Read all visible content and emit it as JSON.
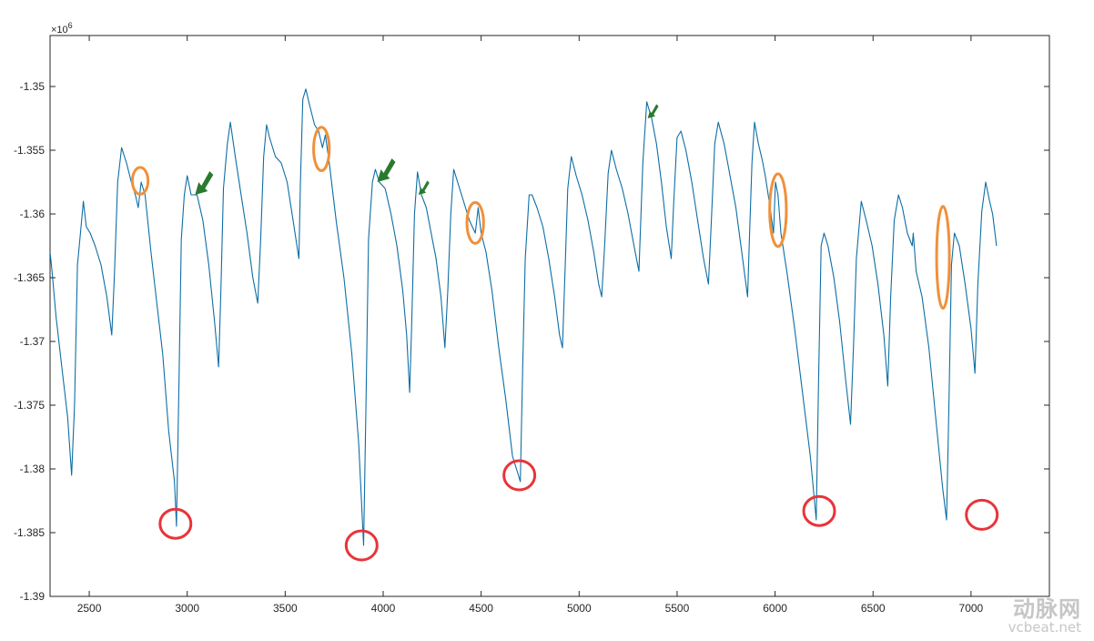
{
  "chart_data": {
    "type": "line",
    "title": "",
    "xlabel": "",
    "ylabel": "",
    "y_exponent_label": "×10",
    "y_exponent_power": "6",
    "xlim": [
      2300,
      7400
    ],
    "ylim": [
      -1.39,
      -1.346
    ],
    "x_ticks": [
      2500,
      3000,
      3500,
      4000,
      4500,
      5000,
      5500,
      6000,
      6500,
      7000
    ],
    "x_tick_labels": [
      "2500",
      "3000",
      "3500",
      "4000",
      "4500",
      "5000",
      "5500",
      "6000",
      "6500",
      "7000"
    ],
    "y_ticks": [
      -1.35,
      -1.355,
      -1.36,
      -1.365,
      -1.37,
      -1.375,
      -1.38,
      -1.385,
      -1.39
    ],
    "y_tick_labels": [
      "-1.35",
      "-1.355",
      "-1.36",
      "-1.365",
      "-1.37",
      "-1.375",
      "-1.38",
      "-1.385",
      "-1.39"
    ],
    "grid": false,
    "colors": {
      "line": "#0e6ea5",
      "red_marker": "#e8343a",
      "orange_marker": "#f0903a",
      "green_marker": "#2a7a2e",
      "axis": "#262626"
    },
    "series": [
      {
        "values": [
          [
            2300,
            -1.363
          ],
          [
            2310,
            -1.3645
          ],
          [
            2330,
            -1.368
          ],
          [
            2360,
            -1.372
          ],
          [
            2390,
            -1.376
          ],
          [
            2410,
            -1.3805
          ],
          [
            2425,
            -1.375
          ],
          [
            2440,
            -1.364
          ],
          [
            2455,
            -1.3615
          ],
          [
            2470,
            -1.359
          ],
          [
            2485,
            -1.361
          ],
          [
            2505,
            -1.3615
          ],
          [
            2530,
            -1.3625
          ],
          [
            2560,
            -1.364
          ],
          [
            2590,
            -1.3665
          ],
          [
            2615,
            -1.3695
          ],
          [
            2628,
            -1.365
          ],
          [
            2645,
            -1.3575
          ],
          [
            2665,
            -1.3548
          ],
          [
            2690,
            -1.356
          ],
          [
            2715,
            -1.3575
          ],
          [
            2735,
            -1.3585
          ],
          [
            2750,
            -1.3595
          ],
          [
            2765,
            -1.3575
          ],
          [
            2785,
            -1.3585
          ],
          [
            2815,
            -1.363
          ],
          [
            2845,
            -1.367
          ],
          [
            2875,
            -1.371
          ],
          [
            2905,
            -1.377
          ],
          [
            2935,
            -1.381
          ],
          [
            2945,
            -1.3845
          ],
          [
            2958,
            -1.373
          ],
          [
            2970,
            -1.362
          ],
          [
            2985,
            -1.3585
          ],
          [
            3000,
            -1.357
          ],
          [
            3020,
            -1.3585
          ],
          [
            3050,
            -1.3585
          ],
          [
            3080,
            -1.3605
          ],
          [
            3110,
            -1.364
          ],
          [
            3140,
            -1.3685
          ],
          [
            3160,
            -1.372
          ],
          [
            3172,
            -1.366
          ],
          [
            3185,
            -1.358
          ],
          [
            3205,
            -1.3545
          ],
          [
            3220,
            -1.3528
          ],
          [
            3245,
            -1.3555
          ],
          [
            3275,
            -1.3585
          ],
          [
            3305,
            -1.3615
          ],
          [
            3335,
            -1.365
          ],
          [
            3360,
            -1.367
          ],
          [
            3375,
            -1.362
          ],
          [
            3390,
            -1.3555
          ],
          [
            3405,
            -1.353
          ],
          [
            3420,
            -1.354
          ],
          [
            3450,
            -1.3555
          ],
          [
            3480,
            -1.356
          ],
          [
            3510,
            -1.3575
          ],
          [
            3540,
            -1.3605
          ],
          [
            3570,
            -1.3635
          ],
          [
            3578,
            -1.3575
          ],
          [
            3590,
            -1.351
          ],
          [
            3605,
            -1.3502
          ],
          [
            3625,
            -1.3515
          ],
          [
            3650,
            -1.353
          ],
          [
            3670,
            -1.3535
          ],
          [
            3690,
            -1.3548
          ],
          [
            3705,
            -1.3538
          ],
          [
            3725,
            -1.356
          ],
          [
            3760,
            -1.3605
          ],
          [
            3800,
            -1.365
          ],
          [
            3840,
            -1.371
          ],
          [
            3875,
            -1.378
          ],
          [
            3900,
            -1.386
          ],
          [
            3912,
            -1.375
          ],
          [
            3925,
            -1.362
          ],
          [
            3945,
            -1.3575
          ],
          [
            3960,
            -1.3565
          ],
          [
            3980,
            -1.3575
          ],
          [
            4010,
            -1.358
          ],
          [
            4040,
            -1.36
          ],
          [
            4070,
            -1.3625
          ],
          [
            4100,
            -1.366
          ],
          [
            4120,
            -1.3695
          ],
          [
            4135,
            -1.374
          ],
          [
            4145,
            -1.369
          ],
          [
            4160,
            -1.36
          ],
          [
            4175,
            -1.3567
          ],
          [
            4195,
            -1.3585
          ],
          [
            4220,
            -1.3595
          ],
          [
            4245,
            -1.3615
          ],
          [
            4270,
            -1.3635
          ],
          [
            4295,
            -1.3665
          ],
          [
            4315,
            -1.3705
          ],
          [
            4330,
            -1.366
          ],
          [
            4345,
            -1.36
          ],
          [
            4360,
            -1.3565
          ],
          [
            4380,
            -1.3575
          ],
          [
            4410,
            -1.359
          ],
          [
            4440,
            -1.3605
          ],
          [
            4470,
            -1.3615
          ],
          [
            4485,
            -1.3595
          ],
          [
            4500,
            -1.3615
          ],
          [
            4525,
            -1.363
          ],
          [
            4555,
            -1.366
          ],
          [
            4590,
            -1.3705
          ],
          [
            4625,
            -1.3745
          ],
          [
            4660,
            -1.379
          ],
          [
            4690,
            -1.3805
          ],
          [
            4700,
            -1.381
          ],
          [
            4712,
            -1.372
          ],
          [
            4725,
            -1.3635
          ],
          [
            4745,
            -1.3585
          ],
          [
            4760,
            -1.3585
          ],
          [
            4785,
            -1.3595
          ],
          [
            4815,
            -1.361
          ],
          [
            4845,
            -1.3635
          ],
          [
            4875,
            -1.3665
          ],
          [
            4900,
            -1.3695
          ],
          [
            4915,
            -1.3705
          ],
          [
            4928,
            -1.3645
          ],
          [
            4942,
            -1.358
          ],
          [
            4960,
            -1.3555
          ],
          [
            4985,
            -1.357
          ],
          [
            5015,
            -1.3585
          ],
          [
            5045,
            -1.3605
          ],
          [
            5075,
            -1.363
          ],
          [
            5100,
            -1.3655
          ],
          [
            5115,
            -1.3665
          ],
          [
            5130,
            -1.3625
          ],
          [
            5148,
            -1.3568
          ],
          [
            5165,
            -1.355
          ],
          [
            5190,
            -1.3565
          ],
          [
            5220,
            -1.358
          ],
          [
            5250,
            -1.36
          ],
          [
            5280,
            -1.3625
          ],
          [
            5305,
            -1.3645
          ],
          [
            5325,
            -1.356
          ],
          [
            5345,
            -1.3512
          ],
          [
            5370,
            -1.3525
          ],
          [
            5395,
            -1.3545
          ],
          [
            5420,
            -1.3575
          ],
          [
            5445,
            -1.361
          ],
          [
            5470,
            -1.3635
          ],
          [
            5483,
            -1.359
          ],
          [
            5500,
            -1.354
          ],
          [
            5520,
            -1.3535
          ],
          [
            5545,
            -1.355
          ],
          [
            5575,
            -1.3575
          ],
          [
            5605,
            -1.3605
          ],
          [
            5635,
            -1.3635
          ],
          [
            5660,
            -1.3655
          ],
          [
            5675,
            -1.3605
          ],
          [
            5692,
            -1.3545
          ],
          [
            5710,
            -1.3528
          ],
          [
            5740,
            -1.3545
          ],
          [
            5770,
            -1.357
          ],
          [
            5800,
            -1.3595
          ],
          [
            5830,
            -1.363
          ],
          [
            5860,
            -1.3665
          ],
          [
            5870,
            -1.3615
          ],
          [
            5882,
            -1.356
          ],
          [
            5895,
            -1.3528
          ],
          [
            5915,
            -1.3545
          ],
          [
            5935,
            -1.3558
          ],
          [
            5950,
            -1.357
          ],
          [
            5970,
            -1.359
          ],
          [
            5992,
            -1.3615
          ],
          [
            6002,
            -1.3575
          ],
          [
            6015,
            -1.3585
          ],
          [
            6030,
            -1.3615
          ],
          [
            6060,
            -1.3645
          ],
          [
            6100,
            -1.369
          ],
          [
            6140,
            -1.374
          ],
          [
            6180,
            -1.379
          ],
          [
            6210,
            -1.384
          ],
          [
            6222,
            -1.373
          ],
          [
            6235,
            -1.3625
          ],
          [
            6250,
            -1.3615
          ],
          [
            6270,
            -1.3625
          ],
          [
            6300,
            -1.365
          ],
          [
            6330,
            -1.3685
          ],
          [
            6360,
            -1.373
          ],
          [
            6385,
            -1.3765
          ],
          [
            6400,
            -1.3705
          ],
          [
            6415,
            -1.3635
          ],
          [
            6440,
            -1.359
          ],
          [
            6465,
            -1.3605
          ],
          [
            6495,
            -1.3625
          ],
          [
            6525,
            -1.3655
          ],
          [
            6555,
            -1.3695
          ],
          [
            6575,
            -1.3735
          ],
          [
            6590,
            -1.3665
          ],
          [
            6608,
            -1.3605
          ],
          [
            6630,
            -1.3585
          ],
          [
            6650,
            -1.3595
          ],
          [
            6675,
            -1.3615
          ],
          [
            6700,
            -1.3625
          ],
          [
            6705,
            -1.3615
          ],
          [
            6720,
            -1.3645
          ],
          [
            6750,
            -1.3665
          ],
          [
            6785,
            -1.3705
          ],
          [
            6820,
            -1.376
          ],
          [
            6855,
            -1.3815
          ],
          [
            6875,
            -1.384
          ],
          [
            6887,
            -1.375
          ],
          [
            6900,
            -1.364
          ],
          [
            6915,
            -1.3615
          ],
          [
            6940,
            -1.3625
          ],
          [
            6970,
            -1.3655
          ],
          [
            7000,
            -1.369
          ],
          [
            7020,
            -1.3725
          ],
          [
            7035,
            -1.3655
          ],
          [
            7055,
            -1.3598
          ],
          [
            7075,
            -1.3575
          ],
          [
            7095,
            -1.359
          ],
          [
            7110,
            -1.36
          ],
          [
            7130,
            -1.3625
          ]
        ]
      }
    ],
    "annotations": {
      "red_circles": [
        [
          2940,
          -1.3843
        ],
        [
          3890,
          -1.386
        ],
        [
          4695,
          -1.3805
        ],
        [
          6225,
          -1.3833
        ],
        [
          7055,
          -1.3836
        ]
      ],
      "orange_ellipses": [
        [
          2760,
          -1.3574,
          80,
          0.0021
        ],
        [
          3685,
          -1.3549,
          80,
          0.0034
        ],
        [
          4470,
          -1.3607,
          85,
          0.0032
        ],
        [
          6015,
          -1.3597,
          85,
          0.0057
        ],
        [
          6857,
          -1.3634,
          65,
          0.008
        ]
      ],
      "green_arrows": [
        [
          3040,
          -1.3585,
          "large"
        ],
        [
          3970,
          -1.3575,
          "large"
        ],
        [
          4180,
          -1.3585,
          "small"
        ],
        [
          5350,
          -1.3525,
          "small"
        ]
      ]
    }
  },
  "watermark": {
    "main_text": "动脉网",
    "sub_text": "vcbeat.net"
  }
}
